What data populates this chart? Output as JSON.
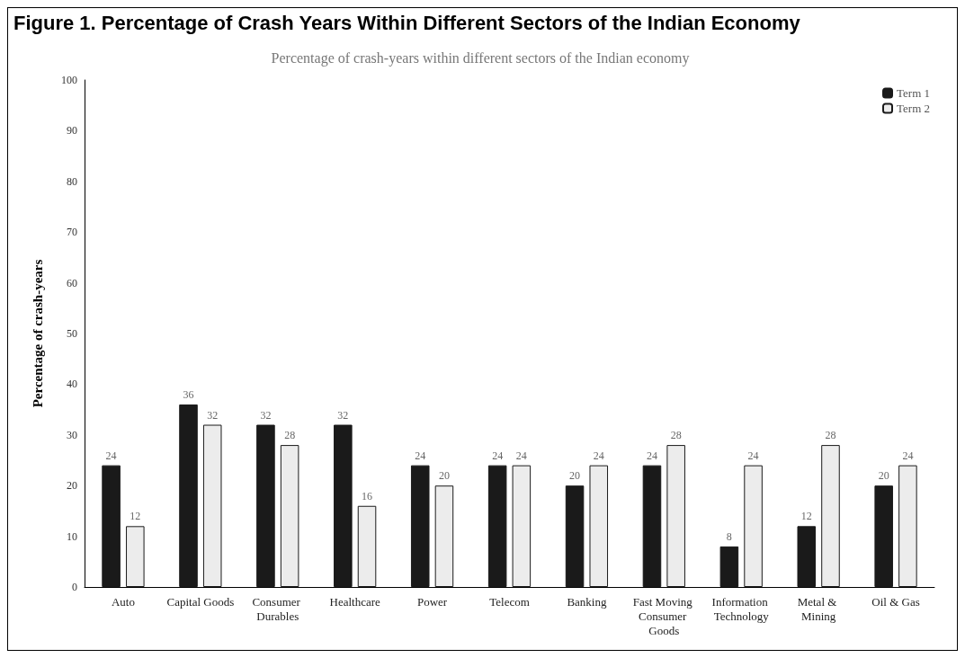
{
  "chart_data": {
    "type": "bar",
    "title": "Figure 1. Percentage of Crash Years Within Different Sectors of the Indian Economy",
    "subtitle": "Percentage of crash-years within different sectors of the Indian economy",
    "ylabel": "Percentage of crash-years",
    "categories": [
      "Auto",
      "Capital Goods",
      "Consumer Durables",
      "Healthcare",
      "Power",
      "Telecom",
      "Banking",
      "Fast Moving Consumer Goods",
      "Information Technology",
      "Metal & Mining",
      "Oil & Gas"
    ],
    "series": [
      {
        "name": "Term 1",
        "color": "#1a1a1a",
        "values": [
          24,
          36,
          32,
          32,
          24,
          24,
          20,
          24,
          8,
          12,
          20
        ]
      },
      {
        "name": "Term 2",
        "color": "#ececec",
        "values": [
          12,
          32,
          28,
          16,
          20,
          24,
          24,
          28,
          24,
          28,
          24
        ]
      }
    ],
    "ylim": [
      0,
      100
    ],
    "yticks": [
      0,
      10,
      20,
      30,
      40,
      50,
      60,
      70,
      80,
      90,
      100
    ],
    "grid": false,
    "legend": "top right",
    "data_labels": true
  }
}
